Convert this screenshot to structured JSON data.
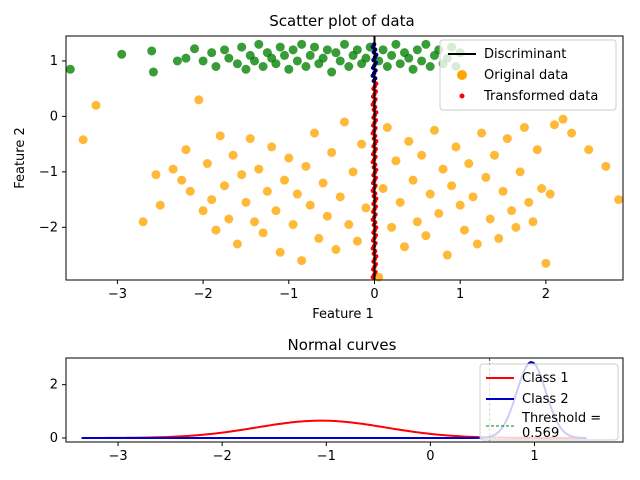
{
  "chart_data": [
    {
      "type": "scatter",
      "title": "Scatter plot of data",
      "xlabel": "Feature 1",
      "ylabel": "Feature 2",
      "xlim": [
        -3.6,
        2.9
      ],
      "ylim": [
        -2.95,
        1.45
      ],
      "xticks": [
        -3,
        -2,
        -1,
        0,
        1,
        2
      ],
      "yticks": [
        -2,
        -1,
        0,
        1
      ],
      "grid": false,
      "legend_position": "top-right",
      "legend": [
        "Discriminant",
        "Original data",
        "Transformed data"
      ],
      "colors": {
        "class1": "#008000",
        "class2": "#ffa500",
        "transformed": "#ff0000",
        "discriminant": "#000000",
        "transformed_class1": "#00008b"
      },
      "series": [
        {
          "name": "Original data",
          "class": 1,
          "color": "#008000",
          "points": [
            [
              -3.55,
              0.85
            ],
            [
              -2.95,
              1.12
            ],
            [
              -2.6,
              1.18
            ],
            [
              -2.58,
              0.8
            ],
            [
              -2.3,
              1.0
            ],
            [
              -2.2,
              1.05
            ],
            [
              -2.1,
              1.22
            ],
            [
              -2.0,
              1.0
            ],
            [
              -1.9,
              1.15
            ],
            [
              -1.85,
              0.9
            ],
            [
              -1.75,
              1.2
            ],
            [
              -1.7,
              1.05
            ],
            [
              -1.6,
              0.95
            ],
            [
              -1.55,
              1.25
            ],
            [
              -1.5,
              0.85
            ],
            [
              -1.45,
              1.1
            ],
            [
              -1.4,
              1.0
            ],
            [
              -1.35,
              1.3
            ],
            [
              -1.3,
              0.9
            ],
            [
              -1.25,
              1.15
            ],
            [
              -1.2,
              1.05
            ],
            [
              -1.15,
              0.95
            ],
            [
              -1.1,
              1.25
            ],
            [
              -1.05,
              1.1
            ],
            [
              -1.0,
              0.85
            ],
            [
              -0.95,
              1.2
            ],
            [
              -0.9,
              1.0
            ],
            [
              -0.85,
              1.3
            ],
            [
              -0.8,
              0.9
            ],
            [
              -0.75,
              1.1
            ],
            [
              -0.7,
              1.25
            ],
            [
              -0.65,
              0.95
            ],
            [
              -0.6,
              1.05
            ],
            [
              -0.55,
              1.2
            ],
            [
              -0.5,
              0.8
            ],
            [
              -0.45,
              1.15
            ],
            [
              -0.4,
              1.0
            ],
            [
              -0.35,
              1.3
            ],
            [
              -0.3,
              0.9
            ],
            [
              -0.25,
              1.1
            ],
            [
              -0.2,
              1.2
            ],
            [
              -0.15,
              0.95
            ],
            [
              -0.1,
              1.05
            ],
            [
              -0.05,
              1.25
            ],
            [
              0.05,
              1.0
            ],
            [
              0.1,
              1.2
            ],
            [
              0.15,
              0.9
            ],
            [
              0.2,
              1.1
            ],
            [
              0.25,
              1.3
            ],
            [
              0.3,
              0.95
            ],
            [
              0.35,
              1.15
            ],
            [
              0.4,
              1.05
            ],
            [
              0.45,
              0.85
            ],
            [
              0.5,
              1.2
            ],
            [
              0.55,
              1.0
            ],
            [
              0.6,
              1.3
            ],
            [
              0.65,
              0.9
            ],
            [
              0.7,
              1.1
            ],
            [
              0.75,
              1.2
            ],
            [
              0.8,
              0.95
            ],
            [
              0.85,
              1.05
            ],
            [
              0.9,
              1.25
            ],
            [
              0.95,
              0.9
            ],
            [
              1.0,
              1.15
            ]
          ]
        },
        {
          "name": "Original data",
          "class": 2,
          "color": "#ffa500",
          "points": [
            [
              -3.4,
              -0.42
            ],
            [
              -3.25,
              0.2
            ],
            [
              -2.7,
              -1.9
            ],
            [
              -2.55,
              -1.05
            ],
            [
              -2.5,
              -1.6
            ],
            [
              -2.35,
              -0.95
            ],
            [
              -2.25,
              -1.15
            ],
            [
              -2.2,
              -0.6
            ],
            [
              -2.15,
              -1.35
            ],
            [
              -2.05,
              0.3
            ],
            [
              -2.0,
              -1.7
            ],
            [
              -1.95,
              -0.85
            ],
            [
              -1.9,
              -1.5
            ],
            [
              -1.85,
              -2.05
            ],
            [
              -1.8,
              -0.35
            ],
            [
              -1.75,
              -1.25
            ],
            [
              -1.7,
              -1.85
            ],
            [
              -1.65,
              -0.7
            ],
            [
              -1.6,
              -2.3
            ],
            [
              -1.55,
              -1.05
            ],
            [
              -1.5,
              -1.55
            ],
            [
              -1.45,
              -0.4
            ],
            [
              -1.4,
              -1.9
            ],
            [
              -1.35,
              -0.95
            ],
            [
              -1.3,
              -2.1
            ],
            [
              -1.25,
              -1.35
            ],
            [
              -1.2,
              -0.55
            ],
            [
              -1.15,
              -1.7
            ],
            [
              -1.1,
              -2.45
            ],
            [
              -1.05,
              -1.15
            ],
            [
              -1.0,
              -0.75
            ],
            [
              -0.95,
              -1.95
            ],
            [
              -0.9,
              -1.4
            ],
            [
              -0.85,
              -2.6
            ],
            [
              -0.8,
              -0.9
            ],
            [
              -0.75,
              -1.6
            ],
            [
              -0.7,
              -0.3
            ],
            [
              -0.65,
              -2.2
            ],
            [
              -0.6,
              -1.2
            ],
            [
              -0.55,
              -1.8
            ],
            [
              -0.5,
              -0.65
            ],
            [
              -0.45,
              -2.4
            ],
            [
              -0.4,
              -1.45
            ],
            [
              -0.35,
              -0.1
            ],
            [
              -0.3,
              -1.95
            ],
            [
              -0.25,
              -1.0
            ],
            [
              -0.2,
              -2.25
            ],
            [
              -0.15,
              -0.5
            ],
            [
              -0.1,
              -1.65
            ],
            [
              0.05,
              -2.9
            ],
            [
              0.1,
              -1.3
            ],
            [
              0.15,
              -0.2
            ],
            [
              0.2,
              -2.0
            ],
            [
              0.25,
              -0.8
            ],
            [
              0.3,
              -1.55
            ],
            [
              0.35,
              -2.35
            ],
            [
              0.4,
              -0.45
            ],
            [
              0.45,
              -1.15
            ],
            [
              0.5,
              -1.9
            ],
            [
              0.55,
              -0.7
            ],
            [
              0.6,
              -2.15
            ],
            [
              0.65,
              -1.4
            ],
            [
              0.7,
              -0.25
            ],
            [
              0.75,
              -1.75
            ],
            [
              0.8,
              -0.95
            ],
            [
              0.85,
              -2.5
            ],
            [
              0.9,
              -1.25
            ],
            [
              0.95,
              -0.55
            ],
            [
              1.0,
              -1.6
            ],
            [
              1.05,
              -2.05
            ],
            [
              1.1,
              -0.85
            ],
            [
              1.15,
              -1.45
            ],
            [
              1.2,
              -2.3
            ],
            [
              1.25,
              -0.3
            ],
            [
              1.3,
              -1.1
            ],
            [
              1.35,
              -1.85
            ],
            [
              1.4,
              -0.7
            ],
            [
              1.45,
              -2.2
            ],
            [
              1.5,
              -1.35
            ],
            [
              1.55,
              -0.4
            ],
            [
              1.6,
              -1.7
            ],
            [
              1.65,
              -2.0
            ],
            [
              1.7,
              -1.0
            ],
            [
              1.75,
              -0.2
            ],
            [
              1.8,
              -1.55
            ],
            [
              1.85,
              -1.9
            ],
            [
              1.9,
              -0.6
            ],
            [
              1.95,
              -1.3
            ],
            [
              2.0,
              -2.65
            ],
            [
              2.05,
              -1.4
            ],
            [
              2.1,
              -0.15
            ],
            [
              2.2,
              -0.05
            ],
            [
              2.3,
              -0.3
            ],
            [
              2.5,
              -0.6
            ],
            [
              2.7,
              -0.9
            ],
            [
              2.85,
              -1.5
            ]
          ]
        },
        {
          "name": "Transformed data",
          "color": "#ff0000",
          "x_range": [
            -0.02,
            0.02
          ],
          "y_range": [
            -2.9,
            1.3
          ]
        }
      ],
      "discriminant": {
        "name": "Discriminant",
        "x": [
          0.0,
          0.0
        ],
        "y": [
          -2.95,
          1.45
        ]
      }
    },
    {
      "type": "line",
      "title": "Normal curves",
      "xlim": [
        -3.5,
        1.85
      ],
      "ylim": [
        -0.15,
        3.0
      ],
      "xticks": [
        -3,
        -2,
        -1,
        0,
        1
      ],
      "yticks": [
        0,
        2
      ],
      "grid": false,
      "legend_position": "top-right",
      "series": [
        {
          "name": "Class 1",
          "color": "#ff0000",
          "mean": -1.05,
          "peak": 0.65,
          "sigma": 0.62,
          "x_range": [
            -3.35,
            1.5
          ]
        },
        {
          "name": "Class 2",
          "color": "#0000cc",
          "mean": 0.97,
          "peak": 2.85,
          "sigma": 0.14,
          "x_range": [
            -3.35,
            1.5
          ]
        }
      ],
      "threshold": {
        "name": "Threshold =\n0.569",
        "label_line1": "Threshold =",
        "label_line2": "0.569",
        "value": 0.569,
        "color": "#008000"
      }
    }
  ]
}
